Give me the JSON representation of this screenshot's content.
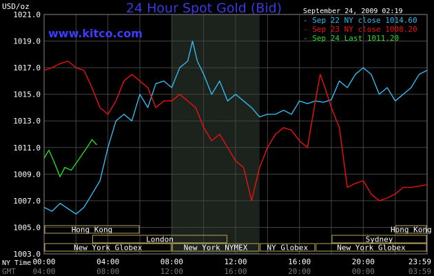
{
  "chart_data": {
    "type": "line",
    "title": "24 Hour Spot Gold (Bid)",
    "site": "www.kitco.com",
    "timestamp": "September 24, 2009 02:19",
    "ylabel": "USD/oz",
    "ylim": [
      1003.0,
      1021.0
    ],
    "yticks": [
      "1021.0",
      "1019.0",
      "1017.0",
      "1015.0",
      "1013.0",
      "1011.0",
      "1009.0",
      "1007.0",
      "1005.0",
      "1003.0"
    ],
    "x_label_ny": "NY Time",
    "x_label_gmt": "GMT",
    "xticks_ny": [
      "00:00",
      "04:00",
      "08:00",
      "12:00",
      "16:00",
      "20:00",
      "23:59"
    ],
    "xticks_gmt": [
      "04:00",
      "08:00",
      "12:00",
      "16:00",
      "20:00",
      "00:00",
      "03:59"
    ],
    "grid": true,
    "legend_position": "top-right",
    "series": [
      {
        "name": "Sep 22 NY close 1014.60",
        "color": "#33bbee",
        "points": [
          [
            0,
            1006.5
          ],
          [
            0.5,
            1006.2
          ],
          [
            1,
            1006.8
          ],
          [
            1.5,
            1006.4
          ],
          [
            2,
            1006.0
          ],
          [
            2.5,
            1006.5
          ],
          [
            3,
            1007.5
          ],
          [
            3.5,
            1008.5
          ],
          [
            4,
            1011.0
          ],
          [
            4.5,
            1013.0
          ],
          [
            5,
            1013.5
          ],
          [
            5.5,
            1013.0
          ],
          [
            6,
            1015.0
          ],
          [
            6.5,
            1014.0
          ],
          [
            7,
            1015.8
          ],
          [
            7.5,
            1016.0
          ],
          [
            8,
            1015.5
          ],
          [
            8.5,
            1017.0
          ],
          [
            9,
            1017.5
          ],
          [
            9.3,
            1019.0
          ],
          [
            9.6,
            1017.5
          ],
          [
            10,
            1016.5
          ],
          [
            10.5,
            1015.0
          ],
          [
            11,
            1016.0
          ],
          [
            11.5,
            1014.5
          ],
          [
            12,
            1015.0
          ],
          [
            12.5,
            1014.5
          ],
          [
            13,
            1014.0
          ],
          [
            13.5,
            1013.3
          ],
          [
            14,
            1013.5
          ],
          [
            14.5,
            1013.5
          ],
          [
            15,
            1013.8
          ],
          [
            15.5,
            1013.5
          ],
          [
            16,
            1014.5
          ],
          [
            16.5,
            1014.3
          ],
          [
            17,
            1014.5
          ],
          [
            17.5,
            1014.4
          ],
          [
            18,
            1014.6
          ],
          [
            18.5,
            1016.0
          ],
          [
            19,
            1015.5
          ],
          [
            19.5,
            1016.5
          ],
          [
            20,
            1017.0
          ],
          [
            20.5,
            1016.5
          ],
          [
            21,
            1015.0
          ],
          [
            21.5,
            1015.5
          ],
          [
            22,
            1014.5
          ],
          [
            22.5,
            1015.0
          ],
          [
            23,
            1015.5
          ],
          [
            23.5,
            1016.5
          ],
          [
            23.99,
            1016.8
          ]
        ]
      },
      {
        "name": "Sep 23 NY close 1008.20",
        "color": "#ee1111",
        "points": [
          [
            0,
            1016.8
          ],
          [
            0.5,
            1017.0
          ],
          [
            1,
            1017.3
          ],
          [
            1.5,
            1017.5
          ],
          [
            2,
            1017.0
          ],
          [
            2.5,
            1016.8
          ],
          [
            3,
            1015.5
          ],
          [
            3.5,
            1014.0
          ],
          [
            4,
            1013.5
          ],
          [
            4.5,
            1014.5
          ],
          [
            5,
            1016.0
          ],
          [
            5.5,
            1016.5
          ],
          [
            6,
            1016.0
          ],
          [
            6.5,
            1015.5
          ],
          [
            7,
            1014.0
          ],
          [
            7.5,
            1014.5
          ],
          [
            8,
            1014.5
          ],
          [
            8.5,
            1015.0
          ],
          [
            9,
            1014.5
          ],
          [
            9.5,
            1014.0
          ],
          [
            10,
            1012.5
          ],
          [
            10.5,
            1011.5
          ],
          [
            11,
            1012.0
          ],
          [
            11.5,
            1011.0
          ],
          [
            12,
            1010.0
          ],
          [
            12.5,
            1009.5
          ],
          [
            13,
            1007.0
          ],
          [
            13.5,
            1009.5
          ],
          [
            14,
            1011.0
          ],
          [
            14.5,
            1012.0
          ],
          [
            15,
            1012.5
          ],
          [
            15.5,
            1012.3
          ],
          [
            16,
            1011.5
          ],
          [
            16.5,
            1011.0
          ],
          [
            17,
            1014.5
          ],
          [
            17.3,
            1016.5
          ],
          [
            17.6,
            1015.5
          ],
          [
            18,
            1014.0
          ],
          [
            18.5,
            1012.5
          ],
          [
            19,
            1008.0
          ],
          [
            19.5,
            1008.3
          ],
          [
            20,
            1008.5
          ],
          [
            20.5,
            1007.5
          ],
          [
            21,
            1007.0
          ],
          [
            21.5,
            1007.2
          ],
          [
            22,
            1007.5
          ],
          [
            22.5,
            1008.0
          ],
          [
            23,
            1008.0
          ],
          [
            23.99,
            1008.2
          ]
        ]
      },
      {
        "name": "Sep 24 Last 1011.20",
        "color": "#22dd22",
        "points": [
          [
            0,
            1010.2
          ],
          [
            0.3,
            1010.8
          ],
          [
            0.6,
            1010.0
          ],
          [
            1.0,
            1008.8
          ],
          [
            1.3,
            1009.5
          ],
          [
            1.7,
            1009.3
          ],
          [
            2.0,
            1009.8
          ],
          [
            2.4,
            1010.5
          ],
          [
            2.8,
            1011.2
          ],
          [
            3.0,
            1011.6
          ],
          [
            3.3,
            1011.2
          ]
        ]
      }
    ],
    "sessions": [
      {
        "label": "Hong Kong",
        "row": 0,
        "start": 0.0,
        "end": 6.0
      },
      {
        "label": "Hong Kong",
        "row": 0,
        "start": 22.0,
        "end": 24.0
      },
      {
        "label": "London",
        "row": 1,
        "start": 3.0,
        "end": 11.5
      },
      {
        "label": "Sydney",
        "row": 1,
        "start": 18.0,
        "end": 24.0
      },
      {
        "label": "New York Globex",
        "row": 2,
        "start": 0.0,
        "end": 8.0
      },
      {
        "label": "New York NYMEX",
        "row": 2,
        "start": 8.0,
        "end": 13.5
      },
      {
        "label": "NY Globex",
        "row": 2,
        "start": 13.5,
        "end": 17.0
      },
      {
        "label": "New York Globex",
        "row": 2,
        "start": 17.0,
        "end": 24.0
      }
    ]
  }
}
